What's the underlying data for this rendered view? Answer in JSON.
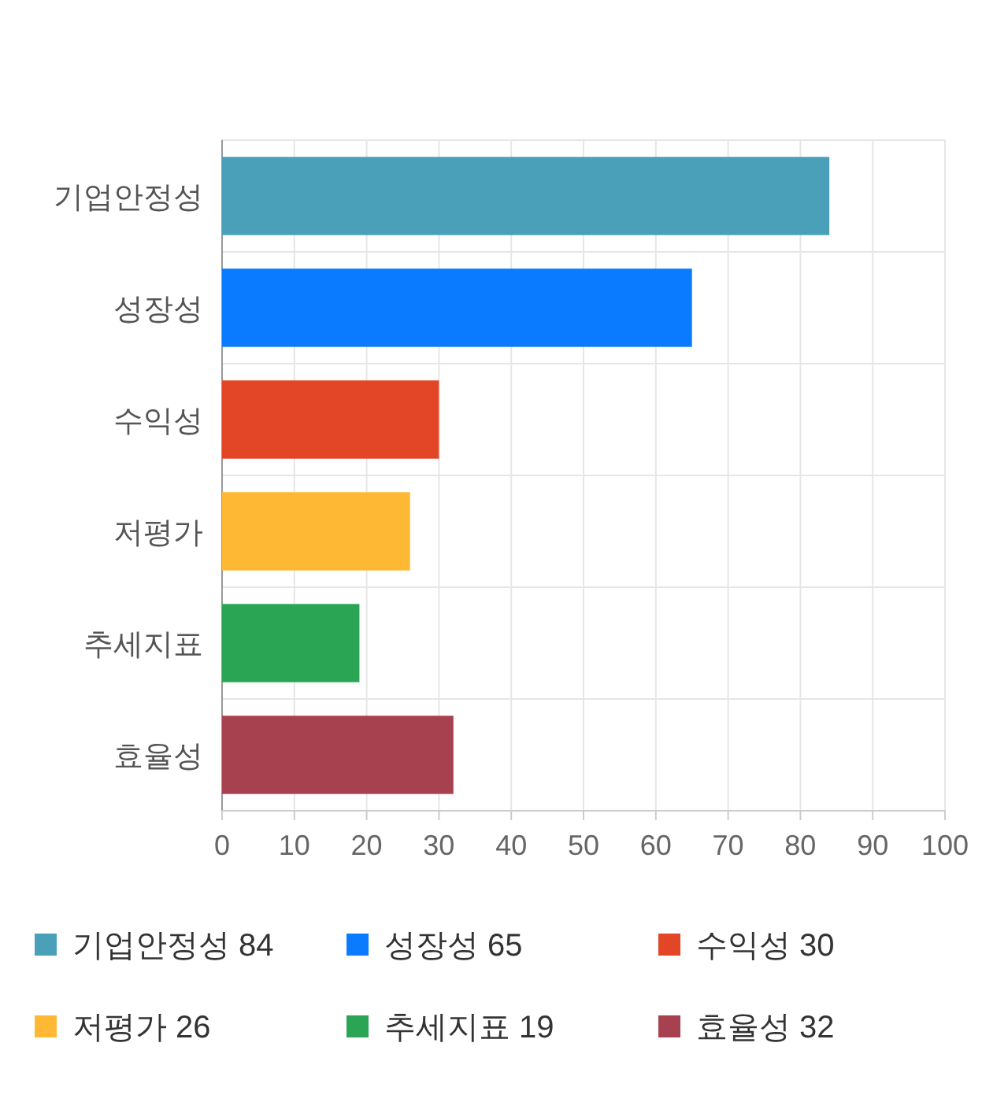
{
  "chart_data": {
    "type": "bar",
    "orientation": "horizontal",
    "categories": [
      "기업안정성",
      "성장성",
      "수익성",
      "저평가",
      "추세지표",
      "효율성"
    ],
    "series": [
      {
        "name": "기업안정성 84",
        "color": "#4aa0b9",
        "values": [
          84,
          null,
          null,
          null,
          null,
          null
        ]
      },
      {
        "name": "성장성 65",
        "color": "#0a7bff",
        "values": [
          null,
          65,
          null,
          null,
          null,
          null
        ]
      },
      {
        "name": "수익성 30",
        "color": "#e34627",
        "values": [
          null,
          null,
          30,
          null,
          null,
          null
        ]
      },
      {
        "name": "저평가 26",
        "color": "#ffb833",
        "values": [
          null,
          null,
          null,
          26,
          null,
          null
        ]
      },
      {
        "name": "추세지표 19",
        "color": "#29a553",
        "values": [
          null,
          null,
          null,
          null,
          19,
          null
        ]
      },
      {
        "name": "효율성 32",
        "color": "#a8414f",
        "values": [
          null,
          null,
          null,
          null,
          null,
          32
        ]
      }
    ],
    "xlim": [
      0,
      100
    ],
    "xticks": [
      0,
      10,
      20,
      30,
      40,
      50,
      60,
      70,
      80,
      90,
      100
    ],
    "grid": true,
    "legend": "bottom"
  }
}
